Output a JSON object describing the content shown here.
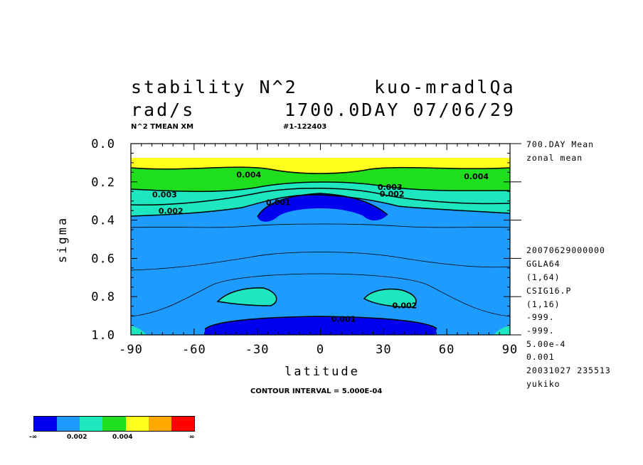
{
  "header": {
    "variable": "stability N^2",
    "experiment": "kuo-mradlQa",
    "units": "rad/s",
    "date": "1700.0DAY 07/06/29",
    "short_name": "N^2 TMEAN XM",
    "run_id": "#1-122403"
  },
  "side_info": {
    "mean": "700.DAY Mean",
    "zonal": "zonal mean",
    "lines": [
      "20070629000000",
      "GGLA64",
      "(1,64)",
      "CSIG16.P",
      "(1,16)",
      "-999.",
      "-999.",
      "5.00e-4",
      "0.001",
      "20031027 235513",
      "yukiko"
    ]
  },
  "footer": {
    "contour_interval": "CONTOUR INTERVAL = 5.000E-04"
  },
  "colorbar": {
    "colors": [
      "#0000ee",
      "#1e9bff",
      "#1ee6be",
      "#1ede1e",
      "#ffff1e",
      "#ffa800",
      "#ff0000"
    ],
    "labels": [
      "-∞",
      "0.002",
      "0.004",
      "∞"
    ]
  },
  "chart_data": {
    "type": "heatmap",
    "xlabel": "latitude",
    "ylabel": "sigma",
    "xlim": [
      -90,
      90
    ],
    "ylim": [
      0.0,
      1.0
    ],
    "y_inverted": true,
    "x_ticks": [
      -90,
      -60,
      -30,
      0,
      30,
      60,
      90
    ],
    "x_tick_labels": [
      "-90",
      "-60",
      "-30",
      "0",
      "30",
      "60",
      "90"
    ],
    "y_ticks": [
      0.0,
      0.2,
      0.4,
      0.6,
      0.8,
      1.0
    ],
    "y_tick_labels": [
      "0.0",
      "0.2",
      "0.4",
      "0.6",
      "0.8",
      "1.0"
    ],
    "contour_interval": 0.0005,
    "contour_labels": [
      {
        "text": "0.004",
        "lat": -34,
        "sigma": 0.165
      },
      {
        "text": "0.004",
        "lat": 74,
        "sigma": 0.175
      },
      {
        "text": "0.003",
        "lat": -74,
        "sigma": 0.27
      },
      {
        "text": "0.003",
        "lat": 33,
        "sigma": 0.23
      },
      {
        "text": "0.002",
        "lat": 34,
        "sigma": 0.265
      },
      {
        "text": "0.002",
        "lat": -71,
        "sigma": 0.355
      },
      {
        "text": "0.001",
        "lat": -20,
        "sigma": 0.31
      },
      {
        "text": "0.002",
        "lat": 40,
        "sigma": 0.85
      },
      {
        "text": "0.001",
        "lat": 11,
        "sigma": 0.92
      }
    ]
  }
}
